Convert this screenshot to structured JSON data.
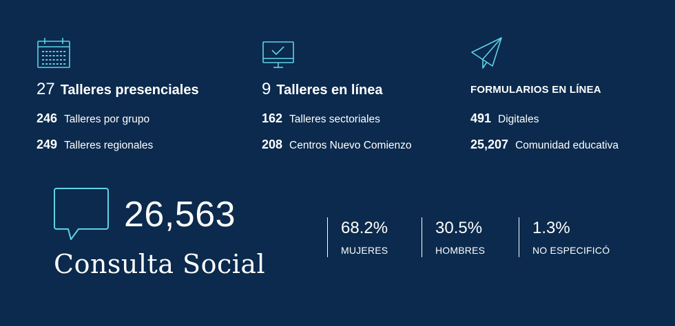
{
  "colors": {
    "background": "#0b2a4d",
    "accent": "#5fd3e8",
    "text": "#ffffff"
  },
  "presenciales": {
    "icon": "calendar-icon",
    "count": "27",
    "label": "Talleres presenciales",
    "rows": [
      {
        "num": "246",
        "label": "Talleres por grupo"
      },
      {
        "num": "249",
        "label": "Talleres regionales"
      }
    ]
  },
  "en_linea": {
    "icon": "monitor-check-icon",
    "count": "9",
    "label": "Talleres en línea",
    "rows": [
      {
        "num": "162",
        "label": "Talleres sectoriales"
      },
      {
        "num": "208",
        "label": "Centros Nuevo Comienzo"
      }
    ]
  },
  "formularios": {
    "icon": "paper-plane-icon",
    "label": "FORMULARIOS EN LÍNEA",
    "rows": [
      {
        "num": "491",
        "label": "Digitales"
      },
      {
        "num": "25,207",
        "label": "Comunidad educativa"
      }
    ]
  },
  "consulta": {
    "icon": "speech-bubble-icon",
    "total": "26,563",
    "label": "Consulta Social",
    "breakdown": [
      {
        "pct": "68.2%",
        "label": "MUJERES"
      },
      {
        "pct": "30.5%",
        "label": "HOMBRES"
      },
      {
        "pct": "1.3%",
        "label": "NO ESPECIFICÓ"
      }
    ]
  }
}
